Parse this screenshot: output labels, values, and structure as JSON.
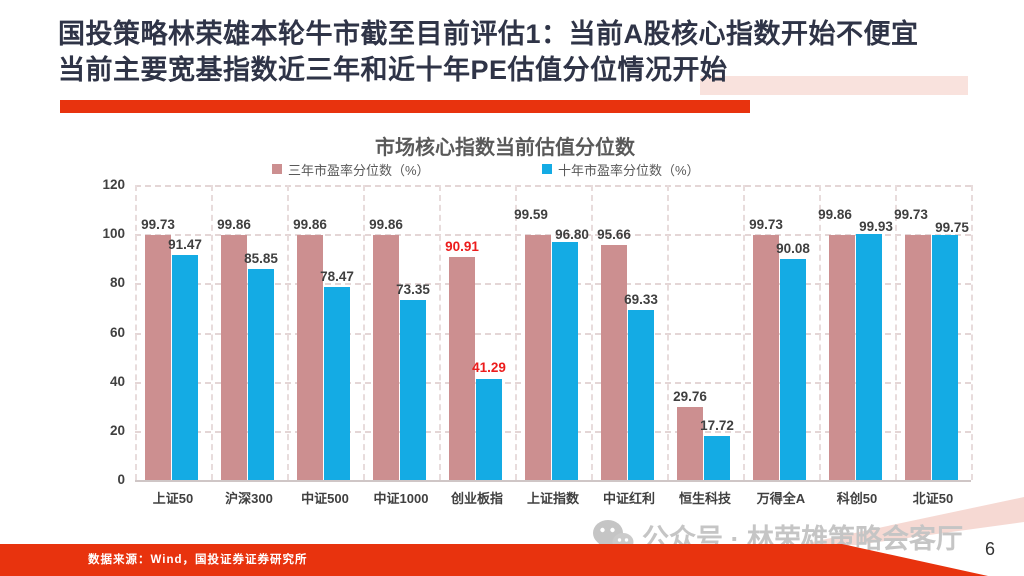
{
  "slide": {
    "title_line1": "国投策略林荣雄本轮牛市截至目前评估1：当前A股核心指数开始不便宜",
    "title_line2": "当前主要宽基指数近三年和近十年PE估值分位情况开始",
    "source_note": "数据来源：Wind，国投证券证券研究所",
    "watermark_text": "公众号 · 林荣雄策略会客厅",
    "watermark_icon": "wechat-icon",
    "page_number": "6",
    "accent_red": "#E8330E",
    "title_color": "#2F3447"
  },
  "chart_data": {
    "type": "bar",
    "title": "市场核心指数当前估值分位数",
    "categories": [
      "上证50",
      "沪深300",
      "中证500",
      "中证1000",
      "创业板指",
      "上证指数",
      "中证红利",
      "恒生科技",
      "万得全A",
      "科创50",
      "北证50"
    ],
    "series": [
      {
        "name": "三年市盈率分位数（%）",
        "color": "#CC8F90",
        "values": [
          99.73,
          99.86,
          99.86,
          99.86,
          90.91,
          99.59,
          95.66,
          29.76,
          99.73,
          99.86,
          99.73
        ]
      },
      {
        "name": "十年市盈率分位数（%）",
        "color": "#14ABE4",
        "values": [
          91.47,
          85.85,
          78.47,
          73.35,
          41.29,
          96.8,
          69.33,
          17.72,
          90.08,
          99.93,
          99.75
        ]
      }
    ],
    "ylim": [
      0,
      120
    ],
    "ytick_step": 20,
    "grid": "dashed",
    "legend_position": "top",
    "label_color": "#3F3F3F",
    "highlight_category": "创业板指",
    "highlight_label_color": "#EC1C1C"
  }
}
